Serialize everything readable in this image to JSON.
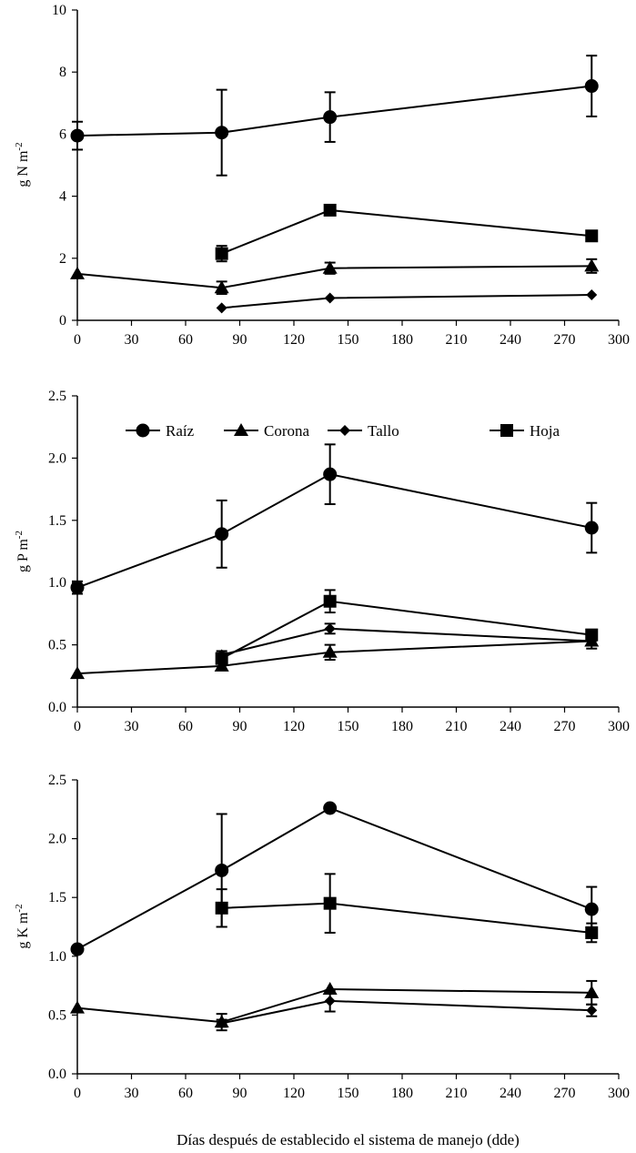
{
  "chart_data": [
    {
      "type": "line",
      "title": "",
      "ylabel": {
        "base": "g N m",
        "sup": "-2"
      },
      "xlabel": "",
      "xlim": [
        0,
        300
      ],
      "ylim": [
        0,
        10
      ],
      "xticks": [
        0,
        30,
        60,
        90,
        120,
        150,
        180,
        210,
        240,
        270,
        300
      ],
      "yticks": [
        {
          "value": 0,
          "label": "0"
        },
        {
          "value": 2,
          "label": "2"
        },
        {
          "value": 4,
          "label": "4"
        },
        {
          "value": 6,
          "label": "6"
        },
        {
          "value": 8,
          "label": "8"
        },
        {
          "value": 10,
          "label": "10"
        }
      ],
      "series": [
        {
          "name": "Raíz",
          "marker": "circle",
          "x": [
            0,
            80,
            140,
            285
          ],
          "y": [
            5.95,
            6.05,
            6.55,
            7.55
          ],
          "err": [
            0.45,
            1.38,
            0.8,
            0.98
          ]
        },
        {
          "name": "Corona",
          "marker": "triangle",
          "x": [
            0,
            80,
            140,
            285
          ],
          "y": [
            1.5,
            1.05,
            1.68,
            1.75
          ],
          "err": [
            0,
            0.2,
            0.18,
            0.22
          ]
        },
        {
          "name": "Tallo",
          "marker": "diamond",
          "x": [
            80,
            140,
            285
          ],
          "y": [
            0.4,
            0.72,
            0.82
          ],
          "err": [
            0,
            0,
            0
          ]
        },
        {
          "name": "Hoja",
          "marker": "square",
          "x": [
            80,
            140,
            285
          ],
          "y": [
            2.15,
            3.55,
            2.72
          ],
          "err": [
            0.25,
            0,
            0
          ]
        }
      ]
    },
    {
      "type": "line",
      "title": "",
      "ylabel": {
        "base": "g P m",
        "sup": "-2"
      },
      "xlabel": "",
      "xlim": [
        0,
        300
      ],
      "ylim": [
        0,
        2.5
      ],
      "xticks": [
        0,
        30,
        60,
        90,
        120,
        150,
        180,
        210,
        240,
        270,
        300
      ],
      "yticks": [
        {
          "value": 0,
          "label": "0.0"
        },
        {
          "value": 0.5,
          "label": "0.5"
        },
        {
          "value": 1.0,
          "label": "1.0"
        },
        {
          "value": 1.5,
          "label": "1.5"
        },
        {
          "value": 2.0,
          "label": "2.0"
        },
        {
          "value": 2.5,
          "label": "2.5"
        }
      ],
      "legend": {
        "position": "top",
        "entries": [
          "Raíz",
          "Corona",
          "Tallo",
          "Hoja"
        ]
      },
      "series": [
        {
          "name": "Raíz",
          "marker": "circle",
          "x": [
            0,
            80,
            140,
            285
          ],
          "y": [
            0.96,
            1.39,
            1.87,
            1.44
          ],
          "err": [
            0.05,
            0.27,
            0.24,
            0.2
          ]
        },
        {
          "name": "Corona",
          "marker": "triangle",
          "x": [
            0,
            80,
            140,
            285
          ],
          "y": [
            0.27,
            0.33,
            0.44,
            0.53
          ],
          "err": [
            0,
            0.03,
            0.06,
            0.06
          ]
        },
        {
          "name": "Tallo",
          "marker": "diamond",
          "x": [
            80,
            140,
            285
          ],
          "y": [
            0.42,
            0.63,
            0.53
          ],
          "err": [
            0.03,
            0.04,
            0.03
          ]
        },
        {
          "name": "Hoja",
          "marker": "square",
          "x": [
            80,
            140,
            285
          ],
          "y": [
            0.39,
            0.85,
            0.58
          ],
          "err": [
            0,
            0.09,
            0.03
          ]
        }
      ]
    },
    {
      "type": "line",
      "title": "",
      "ylabel": {
        "base": "g K m",
        "sup": "-2"
      },
      "xlabel": "Días después de establecido el sistema de manejo (dde)",
      "xlim": [
        0,
        300
      ],
      "ylim": [
        0,
        2.5
      ],
      "xticks": [
        0,
        30,
        60,
        90,
        120,
        150,
        180,
        210,
        240,
        270,
        300
      ],
      "yticks": [
        {
          "value": 0,
          "label": "0.0"
        },
        {
          "value": 0.5,
          "label": "0.5"
        },
        {
          "value": 1.0,
          "label": "1.0"
        },
        {
          "value": 1.5,
          "label": "1.5"
        },
        {
          "value": 2.0,
          "label": "2.0"
        },
        {
          "value": 2.5,
          "label": "2.5"
        }
      ],
      "series": [
        {
          "name": "Raíz",
          "marker": "circle",
          "x": [
            0,
            80,
            140,
            285
          ],
          "y": [
            1.06,
            1.73,
            2.26,
            1.4
          ],
          "err": [
            0,
            0.48,
            0,
            0.19
          ]
        },
        {
          "name": "Corona",
          "marker": "triangle",
          "x": [
            0,
            80,
            140,
            285
          ],
          "y": [
            0.56,
            0.44,
            0.72,
            0.69
          ],
          "err": [
            0,
            0.07,
            0,
            0.1
          ]
        },
        {
          "name": "Tallo",
          "marker": "diamond",
          "x": [
            80,
            140,
            285
          ],
          "y": [
            0.43,
            0.62,
            0.54
          ],
          "err": [
            0.03,
            0.09,
            0.05
          ]
        },
        {
          "name": "Hoja",
          "marker": "square",
          "x": [
            80,
            140,
            285
          ],
          "y": [
            1.41,
            1.45,
            1.2
          ],
          "err": [
            0.16,
            0.25,
            0.08
          ]
        }
      ]
    }
  ]
}
